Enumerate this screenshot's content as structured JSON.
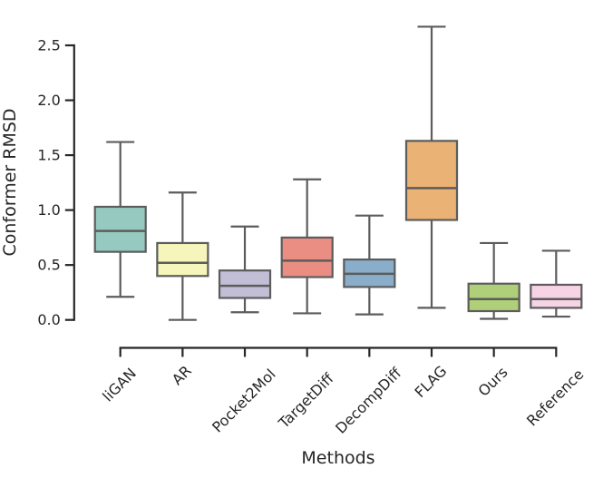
{
  "chart_data": {
    "type": "box",
    "title": "",
    "xlabel": "Methods",
    "ylabel": "Conformer RMSD",
    "categories": [
      "liGAN",
      "AR",
      "Pocket2Mol",
      "TargetDiff",
      "DecompDiff",
      "FLAG",
      "Ours",
      "Reference"
    ],
    "yticks": [
      "0.0",
      "0.5",
      "1.0",
      "1.5",
      "2.0",
      "2.5"
    ],
    "ylim": [
      0.0,
      2.75
    ],
    "grid": false,
    "legend": null,
    "show_fliers": false,
    "boxes": [
      {
        "label": "liGAN",
        "color": "#96cac1",
        "whislo": 0.21,
        "q1": 0.62,
        "median": 0.81,
        "q3": 1.03,
        "whishi": 1.62
      },
      {
        "label": "AR",
        "color": "#f6f6bc",
        "whislo": 0.0,
        "q1": 0.4,
        "median": 0.52,
        "q3": 0.7,
        "whishi": 1.16
      },
      {
        "label": "Pocket2Mol",
        "color": "#c1bed6",
        "whislo": 0.07,
        "q1": 0.2,
        "median": 0.31,
        "q3": 0.45,
        "whishi": 0.85
      },
      {
        "label": "TargetDiff",
        "color": "#ea8e83",
        "whislo": 0.06,
        "q1": 0.39,
        "median": 0.54,
        "q3": 0.75,
        "whishi": 1.28
      },
      {
        "label": "DecompDiff",
        "color": "#8aadc9",
        "whislo": 0.05,
        "q1": 0.3,
        "median": 0.42,
        "q3": 0.55,
        "whishi": 0.95
      },
      {
        "label": "FLAG",
        "color": "#eab375",
        "whislo": 0.11,
        "q1": 0.91,
        "median": 1.2,
        "q3": 1.63,
        "whishi": 2.67
      },
      {
        "label": "Ours",
        "color": "#afcf78",
        "whislo": 0.01,
        "q1": 0.08,
        "median": 0.19,
        "q3": 0.33,
        "whishi": 0.7
      },
      {
        "label": "Reference",
        "color": "#f6d3e5",
        "whislo": 0.03,
        "q1": 0.11,
        "median": 0.19,
        "q3": 0.32,
        "whishi": 0.63
      }
    ],
    "style": {
      "box_edge_color": "#5c5c5c",
      "median_color": "#5c5c5c",
      "axis_color": "#262626",
      "text_color": "#262626",
      "background": "#ffffff"
    }
  }
}
